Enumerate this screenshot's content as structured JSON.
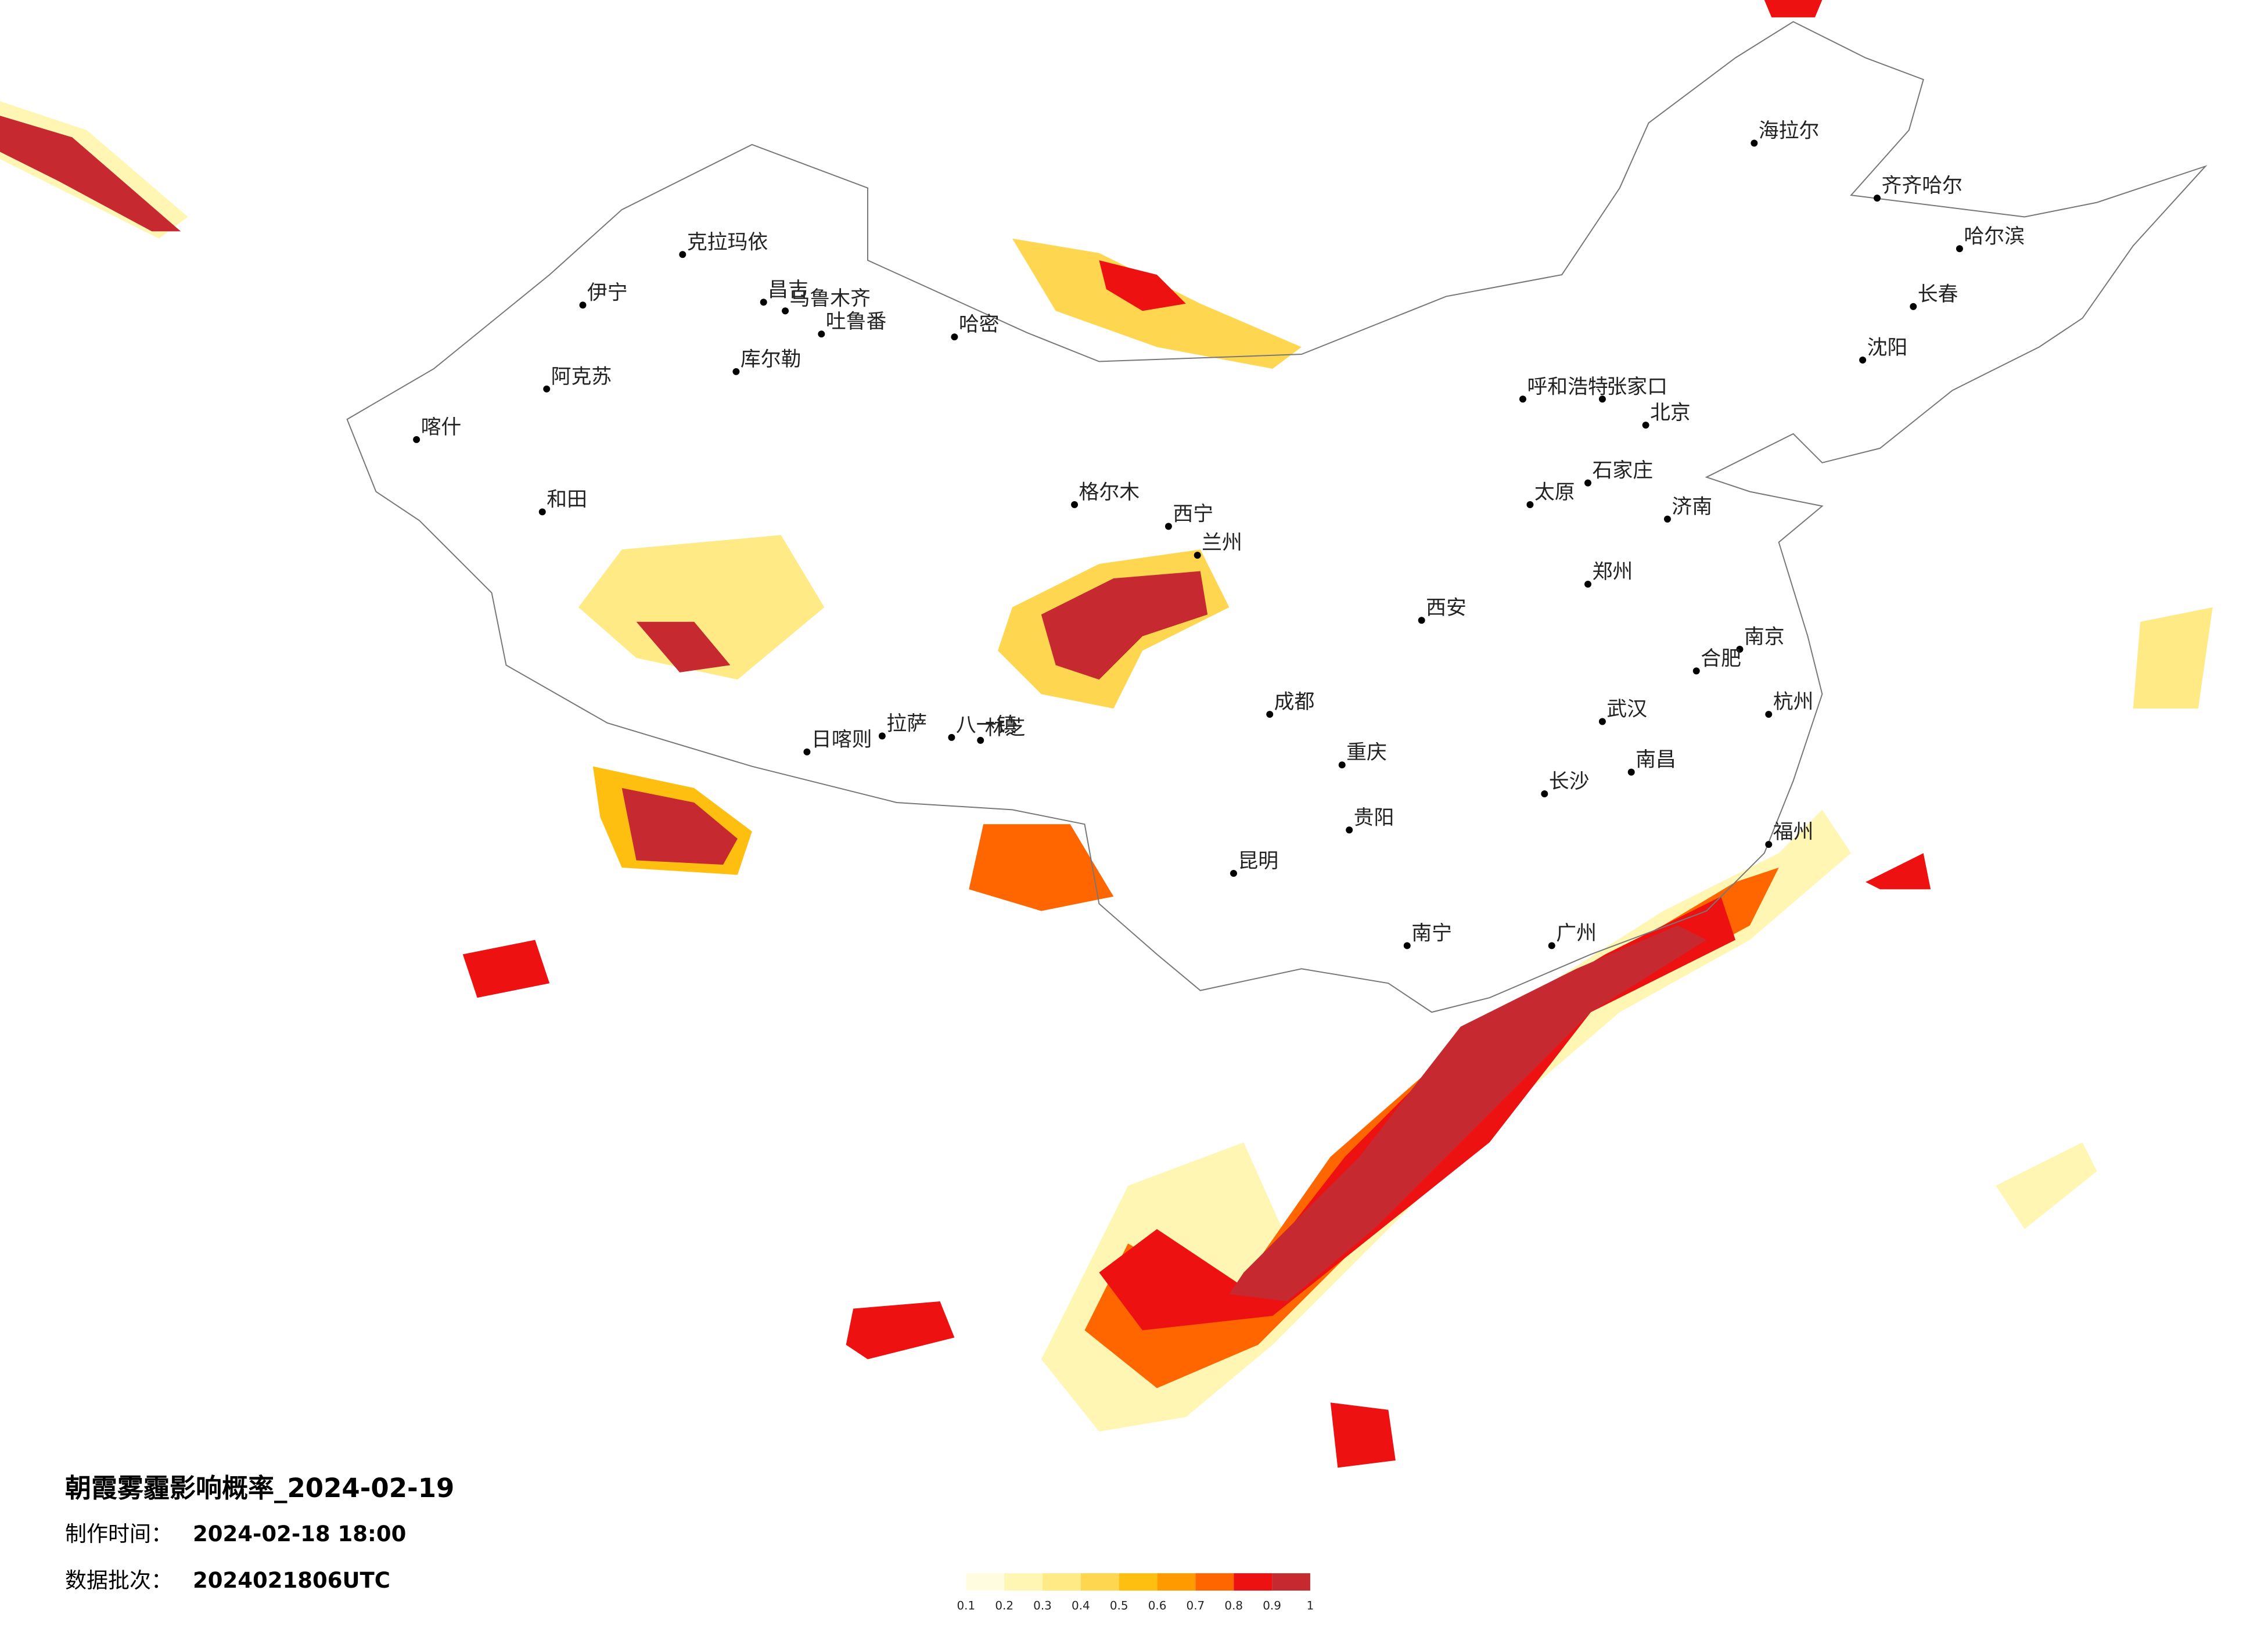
{
  "title": "朝霞雾霾影响概率_2024-02-19",
  "production_time": {
    "label": "制作时间：",
    "value": "2024-02-18 18:00"
  },
  "data_batch": {
    "label": "数据批次：",
    "value": "2024021806UTC"
  },
  "colorbar": {
    "ticks": [
      0.1,
      0.2,
      0.3,
      0.4,
      0.5,
      0.6,
      0.7,
      0.8,
      0.9,
      1
    ],
    "colors": [
      "#fffce0",
      "#fff6b4",
      "#ffea85",
      "#ffd650",
      "#ffbf10",
      "#ff9a00",
      "#ff6600",
      "#ee1111",
      "#c62a30"
    ]
  },
  "cities": [
    "克拉玛依",
    "伊宁",
    "昌吉",
    "乌鲁木齐",
    "吐鲁番",
    "哈密",
    "库尔勒",
    "阿克苏",
    "和田",
    "喀什",
    "格尔木",
    "拉萨",
    "日喀则",
    "八一镇",
    "林芝",
    "海拉尔",
    "齐齐哈尔",
    "哈尔滨",
    "长春",
    "沈阳",
    "北京",
    "呼和浩特",
    "张家口",
    "石家庄",
    "太原",
    "西安",
    "兰州",
    "西宁",
    "郑州",
    "济南",
    "南京",
    "合肥",
    "武汉",
    "成都",
    "重庆",
    "长沙",
    "南昌",
    "杭州",
    "福州",
    "贵阳",
    "昆明",
    "南宁",
    "广州"
  ]
}
